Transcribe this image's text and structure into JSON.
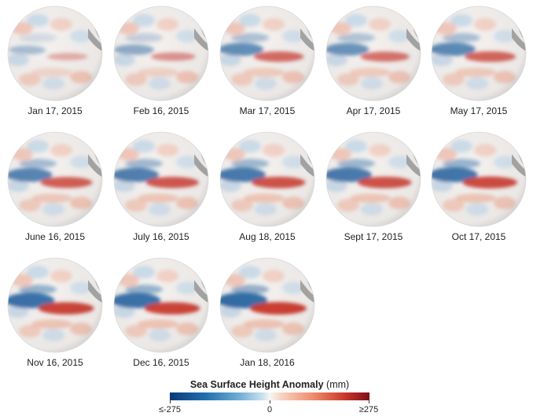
{
  "panels": [
    {
      "date": "Jan 17, 2015",
      "intensity": 0.15
    },
    {
      "date": "Feb 16, 2015",
      "intensity": 0.35
    },
    {
      "date": "Mar 17, 2015",
      "intensity": 0.65
    },
    {
      "date": "Apr 17, 2015",
      "intensity": 0.6
    },
    {
      "date": "May 17, 2015",
      "intensity": 0.7
    },
    {
      "date": "June 16, 2015",
      "intensity": 0.75
    },
    {
      "date": "July 16, 2015",
      "intensity": 0.8
    },
    {
      "date": "Aug 18, 2015",
      "intensity": 0.85
    },
    {
      "date": "Sept 17, 2015",
      "intensity": 0.85
    },
    {
      "date": "Oct 17, 2015",
      "intensity": 0.9
    },
    {
      "date": "Nov 16, 2015",
      "intensity": 0.95
    },
    {
      "date": "Dec 16, 2015",
      "intensity": 0.95
    },
    {
      "date": "Jan 18, 2016",
      "intensity": 1.0
    }
  ],
  "legend": {
    "title_bold": "Sea Surface Height Anomaly",
    "title_unit": "(mm)",
    "min_label": "≤-275",
    "mid_label": "0",
    "max_label": "≥275"
  },
  "colors": {
    "land": "#a8a8a8",
    "ocean_neutral": "#f4f1ef",
    "positive": "#c93529",
    "negative": "#1f5f9e"
  }
}
